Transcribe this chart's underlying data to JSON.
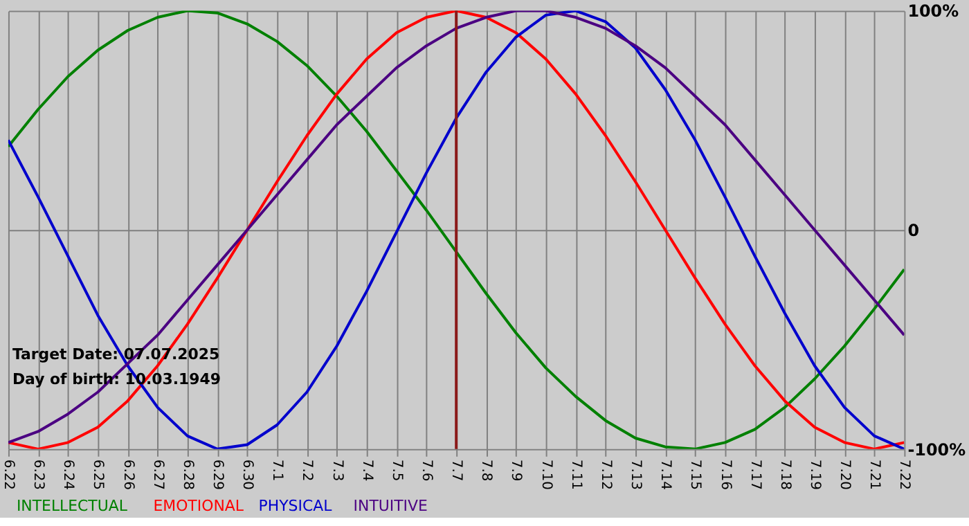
{
  "chart_data": {
    "type": "line",
    "categories": [
      "6.22",
      "6.23",
      "6.24",
      "6.25",
      "6.26",
      "6.27",
      "6.28",
      "6.29",
      "6.30",
      "7.1",
      "7.2",
      "7.3",
      "7.4",
      "7.5",
      "7.6",
      "7.7",
      "7.8",
      "7.9",
      "7.10",
      "7.11",
      "7.12",
      "7.13",
      "7.14",
      "7.15",
      "7.16",
      "7.17",
      "7.18",
      "7.19",
      "7.20",
      "7.21",
      "7.22"
    ],
    "series": [
      {
        "name": "INTELLECTUAL",
        "color": "#008000",
        "values": [
          38,
          55,
          70,
          82,
          91,
          97,
          100,
          99,
          94,
          86,
          75,
          61,
          45,
          27,
          9,
          -10,
          -29,
          -47,
          -63,
          -76,
          -87,
          -95,
          -99,
          -100,
          -97,
          -91,
          -81,
          -68,
          -53,
          -36,
          -18
        ]
      },
      {
        "name": "EMOTIONAL",
        "color": "#ff0000",
        "values": [
          -97,
          -100,
          -97,
          -90,
          -78,
          -62,
          -43,
          -22,
          0,
          22,
          43,
          62,
          78,
          90,
          97,
          100,
          97,
          90,
          78,
          62,
          43,
          22,
          0,
          -22,
          -43,
          -62,
          -78,
          -90,
          -97,
          -100,
          -97
        ]
      },
      {
        "name": "PHYSICAL",
        "color": "#0000cc",
        "values": [
          41,
          15,
          -12,
          -39,
          -62,
          -81,
          -94,
          -100,
          -98,
          -89,
          -74,
          -53,
          -28,
          -1,
          26,
          51,
          72,
          88,
          98,
          100,
          95,
          83,
          64,
          41,
          15,
          -12,
          -38,
          -62,
          -81,
          -94,
          -100
        ]
      },
      {
        "name": "INTUITIVE",
        "color": "#4b0082",
        "values": [
          -97,
          -92,
          -84,
          -74,
          -61,
          -48,
          -32,
          -16,
          0,
          16,
          32,
          48,
          61,
          74,
          84,
          92,
          97,
          100,
          100,
          97,
          92,
          84,
          74,
          61,
          48,
          32,
          16,
          0,
          -16,
          -32,
          -48
        ]
      }
    ],
    "ylim": [
      -100,
      100
    ],
    "yticks": [
      {
        "value": -100,
        "label": "-100%"
      },
      0,
      {
        "value": 100,
        "label": "100%"
      }
    ],
    "grid": true,
    "legend": "bottom",
    "ref_lines": [
      {
        "axis": "x",
        "value": "7.7",
        "label": null,
        "color": "#8b1a1a"
      }
    ],
    "annotations": [
      "Target Date: 07.07.2025",
      "Day of birth: 10.03.1949"
    ]
  }
}
